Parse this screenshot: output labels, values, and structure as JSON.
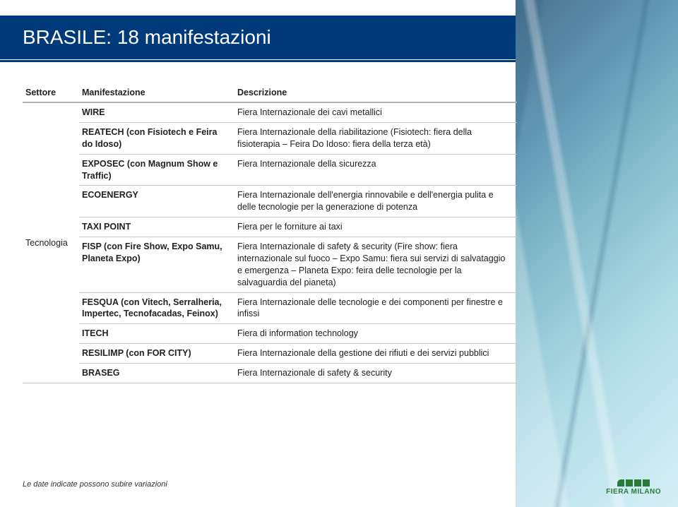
{
  "header": {
    "title": "BRASILE: 18 manifestazioni"
  },
  "columns": {
    "settore": "Settore",
    "manifestazione": "Manifestazione",
    "descrizione": "Descrizione"
  },
  "settore_label": "Tecnologia",
  "rows": [
    {
      "manif": "WIRE",
      "desc": "Fiera Internazionale  dei cavi metallici"
    },
    {
      "manif": "REATECH (con Fisiotech e Feira do Idoso)",
      "desc": "Fiera Internazionale della riabilitazione (Fisiotech: fiera della fisioterapia – Feira Do Idoso:  fiera della terza età)"
    },
    {
      "manif": "EXPOSEC (con Magnum Show e Traffic)",
      "desc": "Fiera  Internazionale della sicurezza"
    },
    {
      "manif": "ECOENERGY",
      "desc": "Fiera Internazionale dell'energia rinnovabile e dell'energia pulita e delle tecnologie per la generazione di potenza"
    },
    {
      "manif": "TAXI POINT",
      "desc": "Fiera  per le forniture ai taxi"
    },
    {
      "manif": "FISP (con Fire Show, Expo Samu, Planeta Expo)",
      "desc": "Fiera Internazionale di safety & security  (Fire show: fiera internazionale sul fuoco – Expo Samu: fiera sui servizi di salvataggio e emergenza – Planeta Expo: feira delle tecnologie per la  salvaguardia del pianeta)"
    },
    {
      "manif": "FESQUA (con Vitech, Serralheria, Impertec, Tecnofacadas, Feinox)",
      "desc": "Fiera Internazionale  delle tecnologie e dei componenti per finestre e infissi"
    },
    {
      "manif": "ITECH",
      "desc": "Fiera di information technology"
    },
    {
      "manif": "RESILIMP (con FOR CITY)",
      "desc": "Fiera Internazionale della gestione dei rifiuti e dei servizi pubblici"
    },
    {
      "manif": "BRASEG",
      "desc": "Fiera Internazionale di safety & security"
    }
  ],
  "footer_note": "Le date indicate possono subire variazioni",
  "logo_text": "FIERA MILANO",
  "colors": {
    "header_bg": "#003a7a",
    "header_text": "#ffffff",
    "row_border": "#c8c8c8",
    "logo_green": "#2a7a3a"
  }
}
